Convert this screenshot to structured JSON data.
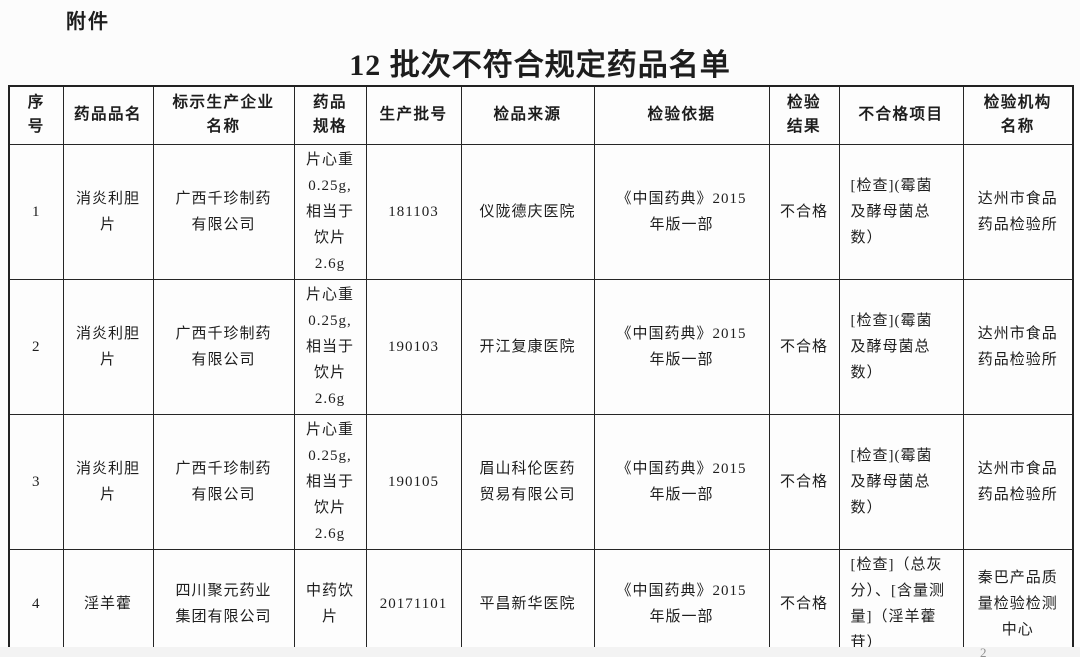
{
  "page": {
    "attachment_label": "附件",
    "title": "12 批次不符合规定药品名单",
    "page_number": "2"
  },
  "table": {
    "headers": [
      "序\n号",
      "药品品名",
      "标示生产企业\n名称",
      "药品\n规格",
      "生产批号",
      "检品来源",
      "检验依据",
      "检验\n结果",
      "不合格项目",
      "检验机构\n名称"
    ],
    "rows": [
      [
        "1",
        "消炎利胆\n片",
        "广西千珍制药\n有限公司",
        "片心重\n0.25g,\n相当于\n饮片\n2.6g",
        "181103",
        "仪陇德庆医院",
        "《中国药典》2015\n年版一部",
        "不合格",
        "[检查](霉菌\n及酵母菌总\n数）",
        "达州市食品\n药品检验所"
      ],
      [
        "2",
        "消炎利胆\n片",
        "广西千珍制药\n有限公司",
        "片心重\n0.25g,\n相当于\n饮片\n2.6g",
        "190103",
        "开江复康医院",
        "《中国药典》2015\n年版一部",
        "不合格",
        "[检查](霉菌\n及酵母菌总\n数）",
        "达州市食品\n药品检验所"
      ],
      [
        "3",
        "消炎利胆\n片",
        "广西千珍制药\n有限公司",
        "片心重\n0.25g,\n相当于\n饮片\n2.6g",
        "190105",
        "眉山科伦医药\n贸易有限公司",
        "《中国药典》2015\n年版一部",
        "不合格",
        "[检查](霉菌\n及酵母菌总\n数）",
        "达州市食品\n药品检验所"
      ],
      [
        "4",
        "淫羊藿",
        "四川聚元药业\n集团有限公司",
        "中药饮\n片",
        "20171101",
        "平昌新华医院",
        "《中国药典》2015\n年版一部",
        "不合格",
        "[检查]（总灰\n分）、[含量测\n量]（淫羊藿\n苷）",
        "秦巴产品质\n量检验检测\n中心"
      ]
    ]
  }
}
